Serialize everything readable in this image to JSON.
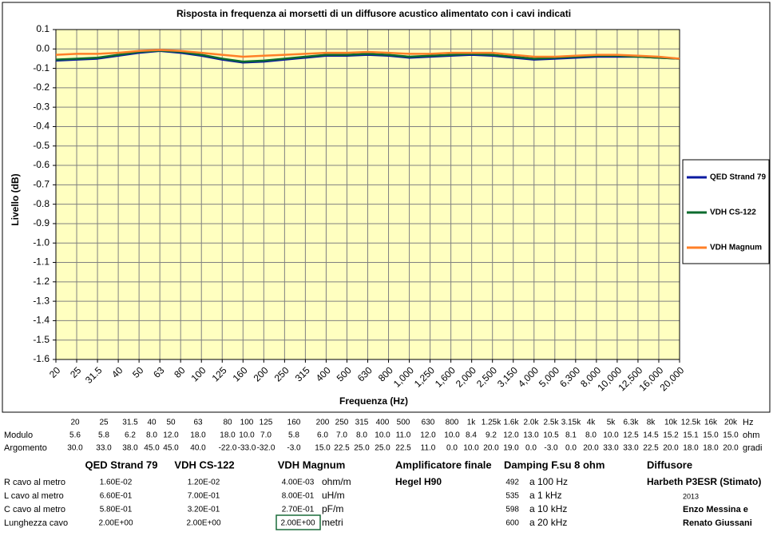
{
  "chart_data": {
    "type": "line",
    "title": "Risposta in frequenza ai morsetti di un diffusore acustico alimentato con i cavi indicati",
    "y_label": "Livello (dB)",
    "x_label": "Frequenza (Hz)",
    "categories": [
      "20",
      "25",
      "31.5",
      "40",
      "50",
      "63",
      "80",
      "100",
      "125",
      "160",
      "200",
      "250",
      "315",
      "400",
      "500",
      "630",
      "800",
      "1,000",
      "1,250",
      "1,600",
      "2,000",
      "2,500",
      "3,150",
      "4,000",
      "5,000",
      "6,300",
      "8,000",
      "10,000",
      "12,500",
      "16,000",
      "20,000"
    ],
    "series": [
      {
        "name": "QED Strand 79",
        "color": "#0a1aa0",
        "values": [
          -0.06,
          -0.055,
          -0.05,
          -0.035,
          -0.02,
          -0.01,
          -0.02,
          -0.035,
          -0.055,
          -0.07,
          -0.065,
          -0.055,
          -0.045,
          -0.035,
          -0.035,
          -0.03,
          -0.035,
          -0.045,
          -0.04,
          -0.035,
          -0.03,
          -0.035,
          -0.045,
          -0.055,
          -0.05,
          -0.045,
          -0.04,
          -0.04,
          -0.04,
          -0.045,
          -0.05
        ]
      },
      {
        "name": "VDH CS-122",
        "color": "#0b6b2e",
        "values": [
          -0.055,
          -0.05,
          -0.045,
          -0.03,
          -0.015,
          -0.008,
          -0.015,
          -0.03,
          -0.05,
          -0.065,
          -0.06,
          -0.05,
          -0.04,
          -0.03,
          -0.03,
          -0.025,
          -0.03,
          -0.04,
          -0.035,
          -0.03,
          -0.025,
          -0.03,
          -0.04,
          -0.05,
          -0.045,
          -0.04,
          -0.035,
          -0.035,
          -0.04,
          -0.045,
          -0.05
        ]
      },
      {
        "name": "VDH Magnum",
        "color": "#ff7f27",
        "values": [
          -0.03,
          -0.025,
          -0.025,
          -0.02,
          -0.01,
          -0.005,
          -0.01,
          -0.02,
          -0.03,
          -0.04,
          -0.035,
          -0.03,
          -0.025,
          -0.02,
          -0.02,
          -0.015,
          -0.02,
          -0.025,
          -0.025,
          -0.02,
          -0.02,
          -0.02,
          -0.03,
          -0.04,
          -0.04,
          -0.035,
          -0.03,
          -0.03,
          -0.035,
          -0.04,
          -0.05
        ]
      }
    ],
    "ylim": [
      -1.6,
      0.1
    ],
    "yticks": [
      0.1,
      {
        "value": 0,
        "label": "0.0"
      },
      -0.1,
      -0.2,
      -0.3,
      -0.4,
      -0.5,
      -0.6,
      -0.7,
      -0.8,
      -0.9,
      {
        "value": -1,
        "label": "-1.0"
      },
      -1.1,
      -1.2,
      -1.3,
      -1.4,
      -1.5,
      -1.6
    ],
    "grid": true,
    "legend": "right"
  },
  "frequency_table": {
    "frequencies": [
      "20",
      "25",
      "31.5",
      "40",
      "50",
      "63",
      "80",
      "100",
      "125",
      "160",
      "200",
      "250",
      "315",
      "400",
      "500",
      "630",
      "800",
      "1k",
      "1.25k",
      "1.6k",
      "2.0k",
      "2.5k",
      "3.15k",
      "4k",
      "5k",
      "6.3k",
      "8k",
      "10k",
      "12.5k",
      "16k",
      "20k"
    ],
    "unit": "Hz",
    "rows": [
      {
        "label": "Modulo",
        "unit": "ohm",
        "values": [
          "5.6",
          "5.8",
          "6.2",
          "8.0",
          "12.0",
          "18.0",
          "18.0",
          "10.0",
          "7.0",
          "5.8",
          "6.0",
          "7.0",
          "8.0",
          "10.0",
          "11.0",
          "12.0",
          "10.0",
          "8.4",
          "9.2",
          "12.0",
          "13.0",
          "10.5",
          "8.1",
          "8.0",
          "10.0",
          "12.5",
          "14.5",
          "15.2",
          "15.1",
          "15.0",
          "15.0"
        ]
      },
      {
        "label": "Argomento",
        "unit": "gradi",
        "values": [
          "30.0",
          "33.0",
          "38.0",
          "45.0",
          "45.0",
          "40.0",
          "-22.0",
          "-33.0",
          "-32.0",
          "-3.0",
          "15.0",
          "22.5",
          "25.0",
          "25.0",
          "22.5",
          "11.0",
          "0.0",
          "10.0",
          "20.0",
          "19.0",
          "0.0",
          "-3.0",
          "0.0",
          "20.0",
          "33.0",
          "33.0",
          "22.5",
          "20.0",
          "18.0",
          "18.0",
          "20.0"
        ]
      }
    ]
  },
  "cables": {
    "headers": [
      "QED Strand 79",
      "VDH CS-122",
      "VDH Magnum"
    ],
    "rows": [
      {
        "label": "R cavo al metro",
        "values": [
          "1.60E-02",
          "1.20E-02",
          "4.00E-03"
        ],
        "unit": "ohm/m"
      },
      {
        "label": "L cavo al metro",
        "values": [
          "6.60E-01",
          "7.00E-01",
          "8.00E-01"
        ],
        "unit": "uH/m"
      },
      {
        "label": "C cavo al metro",
        "values": [
          "5.80E-01",
          "3.20E-01",
          "2.70E-01"
        ],
        "unit": "pF/m"
      },
      {
        "label": "Lunghezza cavo",
        "values": [
          "2.00E+00",
          "2.00E+00",
          "2.00E+00"
        ],
        "unit": "metri"
      }
    ]
  },
  "amplifier": {
    "title": "Amplificatore finale",
    "name": "Hegel H90"
  },
  "damping": {
    "title": "Damping F.su 8 ohm",
    "rows": [
      {
        "value": "492",
        "label": "a 100 Hz"
      },
      {
        "value": "535",
        "label": "a 1 kHz"
      },
      {
        "value": "598",
        "label": "a 10 kHz"
      },
      {
        "value": "600",
        "label": "a 20 kHz"
      }
    ]
  },
  "speaker": {
    "title": "Diffusore",
    "name": "Harbeth P3ESR (Stimato)",
    "year": "2013",
    "authors": [
      "Enzo Messina e",
      "Renato Giussani"
    ]
  }
}
